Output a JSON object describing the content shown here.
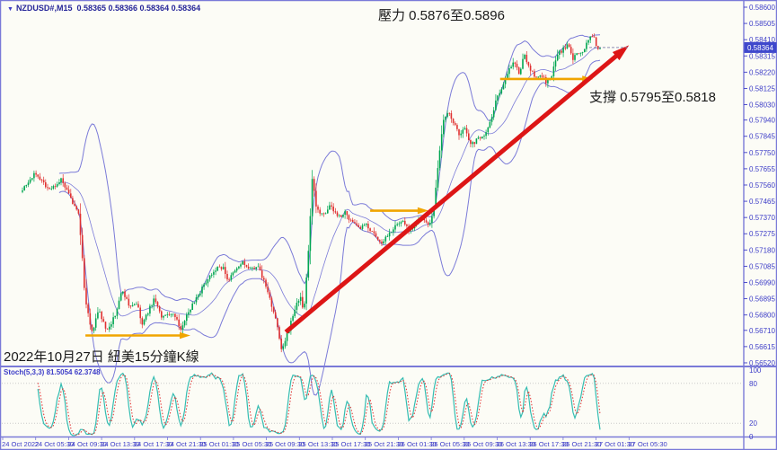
{
  "header": {
    "symbol": "NZDUSD#,M15",
    "quotes": "0.58365 0.58366 0.58364 0.58364",
    "dropdown_icon": "▼"
  },
  "annotations": {
    "resistance": "壓力 0.5876至0.5896",
    "support": "支撐 0.5795至0.5818",
    "caption": "2022年10月27日 紐美15分鐘K線"
  },
  "indicator_label": "Stoch(5,3,3) 81.5054 62.3748",
  "price_axis": {
    "ticks": [
      "0.58600",
      "0.58505",
      "0.58410",
      "0.58315",
      "0.58220",
      "0.58125",
      "0.58030",
      "0.57940",
      "0.57845",
      "0.57750",
      "0.57655",
      "0.57560",
      "0.57465",
      "0.57370",
      "0.57275",
      "0.57180",
      "0.57085",
      "0.56990",
      "0.56895",
      "0.56800",
      "0.56710",
      "0.56615",
      "0.56520"
    ],
    "current": "0.58364"
  },
  "time_axis": {
    "labels": [
      "24 Oct 2022",
      "24 Oct 05:30",
      "24 Oct 09:30",
      "24 Oct 13:30",
      "24 Oct 17:30",
      "24 Oct 21:30",
      "25 Oct 01:30",
      "25 Oct 05:30",
      "25 Oct 09:30",
      "25 Oct 13:30",
      "25 Oct 17:30",
      "25 Oct 21:30",
      "26 Oct 01:30",
      "26 Oct 05:30",
      "26 Oct 09:30",
      "26 Oct 13:30",
      "26 Oct 17:30",
      "26 Oct 21:30",
      "27 Oct 01:30",
      "27 Oct 05:30"
    ]
  },
  "stoch_axis": {
    "labels": [
      "100",
      "80",
      "20",
      "0"
    ]
  },
  "colors": {
    "background": "#fcfcf6",
    "bull": "#00a651",
    "bear": "#e03131",
    "band": "#7b7bd8",
    "axis_text": "#3d3dc8",
    "separator": "#7a7ad8",
    "price_tag_bg": "#3f48cc",
    "price_tag_text": "#ffffff",
    "stoch_k": "#35bdb2",
    "stoch_d": "#e03030",
    "grid_dotted": "#c9c9c9",
    "annotation_text": "#1a1a1a",
    "title_text": "#262699",
    "trend_arrow": "#dd1616",
    "orange_arrow": "#f0a500",
    "current_price_dash": "#8c8cb4"
  },
  "chart_data": {
    "type": "candlestick",
    "symbol": "NZDUSD#",
    "timeframe": "M15",
    "title": "2022年10月27日 紐美15分鐘K線",
    "current_quote": {
      "open": 0.58365,
      "high": 0.58366,
      "low": 0.58364,
      "close": 0.58364
    },
    "resistance_zone": [
      0.5876,
      0.5896
    ],
    "support_zone": [
      0.5795,
      0.5818
    ],
    "ylim": [
      0.565,
      0.58642
    ],
    "yticks_step": 0.00095,
    "current_price": 0.58364,
    "n_bars": 300,
    "price_path": [
      [
        0.0,
        0.5754
      ],
      [
        0.023,
        0.5763
      ],
      [
        0.047,
        0.5753
      ],
      [
        0.067,
        0.5759
      ],
      [
        0.086,
        0.5746
      ],
      [
        0.098,
        0.5738
      ],
      [
        0.109,
        0.5688
      ],
      [
        0.12,
        0.5669
      ],
      [
        0.132,
        0.5683
      ],
      [
        0.145,
        0.5671
      ],
      [
        0.16,
        0.5679
      ],
      [
        0.173,
        0.5695
      ],
      [
        0.185,
        0.5685
      ],
      [
        0.198,
        0.5687
      ],
      [
        0.207,
        0.5674
      ],
      [
        0.219,
        0.5683
      ],
      [
        0.229,
        0.569
      ],
      [
        0.241,
        0.5678
      ],
      [
        0.254,
        0.5681
      ],
      [
        0.266,
        0.5679
      ],
      [
        0.272,
        0.5671
      ],
      [
        0.285,
        0.568
      ],
      [
        0.297,
        0.5688
      ],
      [
        0.31,
        0.5695
      ],
      [
        0.322,
        0.5702
      ],
      [
        0.334,
        0.5707
      ],
      [
        0.347,
        0.5708
      ],
      [
        0.356,
        0.57
      ],
      [
        0.369,
        0.5706
      ],
      [
        0.381,
        0.5711
      ],
      [
        0.393,
        0.5706
      ],
      [
        0.406,
        0.5709
      ],
      [
        0.418,
        0.57
      ],
      [
        0.428,
        0.569
      ],
      [
        0.44,
        0.5675
      ],
      [
        0.449,
        0.5658
      ],
      [
        0.459,
        0.5669
      ],
      [
        0.471,
        0.5683
      ],
      [
        0.481,
        0.5691
      ],
      [
        0.487,
        0.5681
      ],
      [
        0.496,
        0.5722
      ],
      [
        0.502,
        0.5762
      ],
      [
        0.509,
        0.5742
      ],
      [
        0.521,
        0.5739
      ],
      [
        0.533,
        0.5744
      ],
      [
        0.546,
        0.5737
      ],
      [
        0.558,
        0.574
      ],
      [
        0.571,
        0.5734
      ],
      [
        0.583,
        0.573
      ],
      [
        0.596,
        0.5733
      ],
      [
        0.608,
        0.5727
      ],
      [
        0.62,
        0.5722
      ],
      [
        0.633,
        0.5727
      ],
      [
        0.645,
        0.5732
      ],
      [
        0.658,
        0.5735
      ],
      [
        0.67,
        0.573
      ],
      [
        0.683,
        0.5734
      ],
      [
        0.692,
        0.5737
      ],
      [
        0.701,
        0.5732
      ],
      [
        0.711,
        0.5738
      ],
      [
        0.72,
        0.577
      ],
      [
        0.729,
        0.5793
      ],
      [
        0.739,
        0.5799
      ],
      [
        0.748,
        0.5791
      ],
      [
        0.757,
        0.5784
      ],
      [
        0.767,
        0.579
      ],
      [
        0.776,
        0.5779
      ],
      [
        0.785,
        0.5782
      ],
      [
        0.795,
        0.5785
      ],
      [
        0.804,
        0.5787
      ],
      [
        0.813,
        0.5797
      ],
      [
        0.823,
        0.5809
      ],
      [
        0.832,
        0.5814
      ],
      [
        0.841,
        0.5823
      ],
      [
        0.851,
        0.5828
      ],
      [
        0.86,
        0.5821
      ],
      [
        0.869,
        0.5832
      ],
      [
        0.879,
        0.5824
      ],
      [
        0.888,
        0.5818
      ],
      [
        0.897,
        0.5821
      ],
      [
        0.907,
        0.5816
      ],
      [
        0.916,
        0.5819
      ],
      [
        0.925,
        0.5832
      ],
      [
        0.935,
        0.5835
      ],
      [
        0.944,
        0.5838
      ],
      [
        0.953,
        0.583
      ],
      [
        0.963,
        0.5833
      ],
      [
        0.972,
        0.5835
      ],
      [
        0.981,
        0.5841
      ],
      [
        0.988,
        0.5844
      ],
      [
        0.994,
        0.5837
      ],
      [
        1.0,
        0.58364
      ]
    ],
    "overlays": {
      "bollinger": {
        "period": 20,
        "deviation": 2
      },
      "trend_arrow": {
        "from": [
          0.456,
          0.567
        ],
        "to": [
          1.037,
          0.5834
        ]
      },
      "orange_arrows": [
        {
          "from": [
            0.109,
            0.5668
          ],
          "to": [
            0.28,
            0.5668
          ]
        },
        {
          "from": [
            0.602,
            0.5741
          ],
          "to": [
            0.692,
            0.5741
          ]
        },
        {
          "from": [
            0.827,
            0.5818
          ],
          "to": [
            0.977,
            0.5818
          ]
        }
      ]
    },
    "stochastic": {
      "name": "Stoch",
      "settings": "5,3,3",
      "k": 81.5054,
      "d": 62.3748,
      "levels": [
        100,
        80,
        20,
        0
      ],
      "gridlines": [
        80,
        20
      ]
    }
  }
}
